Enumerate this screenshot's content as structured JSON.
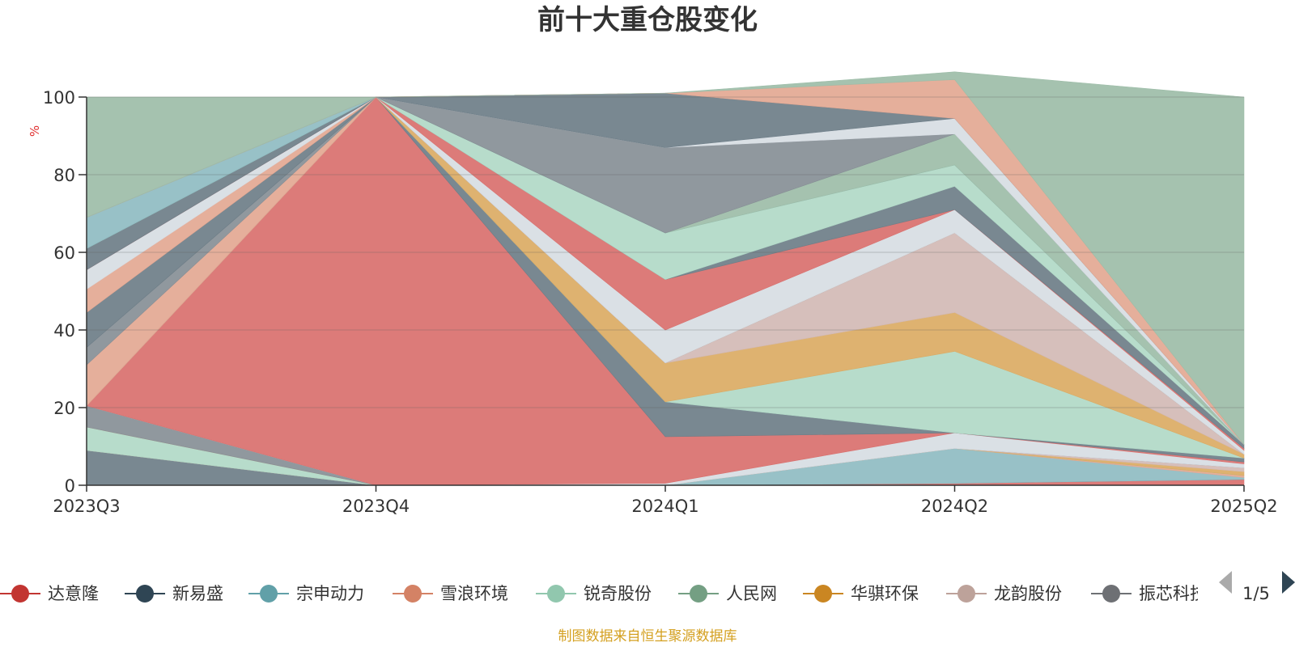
{
  "chart_data": {
    "type": "area",
    "title": "前十大重仓股变化",
    "ylabel": "%",
    "ylim": [
      0,
      100
    ],
    "yticks": [
      0,
      20,
      40,
      60,
      80,
      100
    ],
    "categories": [
      "2023Q3",
      "2023Q4",
      "2024Q1",
      "2024Q2",
      "2025Q2"
    ],
    "stacked": true,
    "grid": true,
    "legend_position": "bottom",
    "series": [
      {
        "name": "达意隆",
        "color": "#d9706e",
        "values": [
          0,
          0,
          0,
          0.5,
          1.5
        ]
      },
      {
        "name": "新易盛",
        "color": "#6e7e88",
        "values": [
          9,
          0,
          0,
          0,
          0
        ]
      },
      {
        "name": "宗申动力",
        "color": "#8fbcc2",
        "values": [
          0,
          0,
          0,
          9,
          0.5
        ]
      },
      {
        "name": "雪浪环境",
        "color": "#e3a893",
        "values": [
          0,
          0,
          0,
          0,
          0.5
        ]
      },
      {
        "name": "锐奇股份",
        "color": "#b1d9c7",
        "values": [
          6,
          0,
          0,
          0,
          0
        ]
      },
      {
        "name": "人民网",
        "color": "#9dbda8",
        "values": [
          0,
          0,
          0,
          0,
          0
        ]
      },
      {
        "name": "华骐环保",
        "color": "#dbab64",
        "values": [
          0,
          0,
          0,
          0,
          1
        ]
      },
      {
        "name": "龙韵股份",
        "color": "#d2bab5",
        "values": [
          0,
          0,
          0,
          0,
          1
        ]
      },
      {
        "name": "振芯科技",
        "color": "#878f96",
        "values": [
          5.5,
          0,
          0,
          0,
          0
        ]
      },
      {
        "name": "",
        "color": "#d7dde3",
        "values": [
          0,
          0,
          0.5,
          4,
          1
        ]
      },
      {
        "name": "",
        "color": "#d9706e",
        "values": [
          0,
          100,
          12,
          0,
          0.5
        ]
      },
      {
        "name": "",
        "color": "#6e7e88",
        "values": [
          0,
          0,
          9,
          0,
          1
        ]
      },
      {
        "name": "",
        "color": "#b1d9c7",
        "values": [
          0,
          0,
          0,
          21,
          0
        ]
      },
      {
        "name": "",
        "color": "#dbab64",
        "values": [
          0,
          0,
          10,
          10,
          1
        ]
      },
      {
        "name": "",
        "color": "#d2bab5",
        "values": [
          0,
          0,
          0,
          20.5,
          0
        ]
      },
      {
        "name": "",
        "color": "#e3a893",
        "values": [
          10.5,
          0,
          0,
          0,
          0
        ]
      },
      {
        "name": "",
        "color": "#878f96",
        "values": [
          4.5,
          0,
          0,
          0,
          0
        ]
      },
      {
        "name": "",
        "color": "#6e7e88",
        "values": [
          9,
          0,
          0,
          0,
          0
        ]
      },
      {
        "name": "",
        "color": "#e3a893",
        "values": [
          6,
          0,
          0,
          0,
          0
        ]
      },
      {
        "name": "",
        "color": "#d7dde3",
        "values": [
          5,
          0,
          8.5,
          6,
          1
        ]
      },
      {
        "name": "",
        "color": "#d9706e",
        "values": [
          0,
          0,
          13,
          0,
          0.5
        ]
      },
      {
        "name": "",
        "color": "#6e7e88",
        "values": [
          5.5,
          0,
          0,
          6,
          1
        ]
      },
      {
        "name": "",
        "color": "#b1d9c7",
        "values": [
          0,
          0,
          12,
          5.5,
          0
        ]
      },
      {
        "name": "",
        "color": "#8fbcc2",
        "values": [
          8,
          0,
          0,
          0,
          0
        ]
      },
      {
        "name": "",
        "color": "#9dbda8",
        "values": [
          0,
          0,
          0,
          8,
          0
        ]
      },
      {
        "name": "",
        "color": "#878f96",
        "values": [
          0,
          0,
          22,
          0,
          0
        ]
      },
      {
        "name": "",
        "color": "#d7dde3",
        "values": [
          0,
          0,
          0,
          4,
          0
        ]
      },
      {
        "name": "",
        "color": "#6e7e88",
        "values": [
          0,
          0,
          14,
          0,
          0
        ]
      },
      {
        "name": "",
        "color": "#e3a893",
        "values": [
          0,
          0,
          0,
          10,
          0
        ]
      },
      {
        "name": "",
        "color": "#9dbda8",
        "values": [
          31,
          0,
          0,
          2,
          89.5
        ]
      }
    ]
  },
  "legend": {
    "items": [
      {
        "label": "达意隆",
        "color": "#c23531"
      },
      {
        "label": "新易盛",
        "color": "#2f4554"
      },
      {
        "label": "宗申动力",
        "color": "#61a0a8"
      },
      {
        "label": "雪浪环境",
        "color": "#d48265"
      },
      {
        "label": "锐奇股份",
        "color": "#91c7ae"
      },
      {
        "label": "人民网",
        "color": "#749f83"
      },
      {
        "label": "华骐环保",
        "color": "#ca8622"
      },
      {
        "label": "龙韵股份",
        "color": "#bda29a"
      },
      {
        "label": "振芯科技",
        "color": "#6e7074"
      }
    ],
    "page": "1/5"
  },
  "source": "制图数据来自恒生聚源数据库"
}
